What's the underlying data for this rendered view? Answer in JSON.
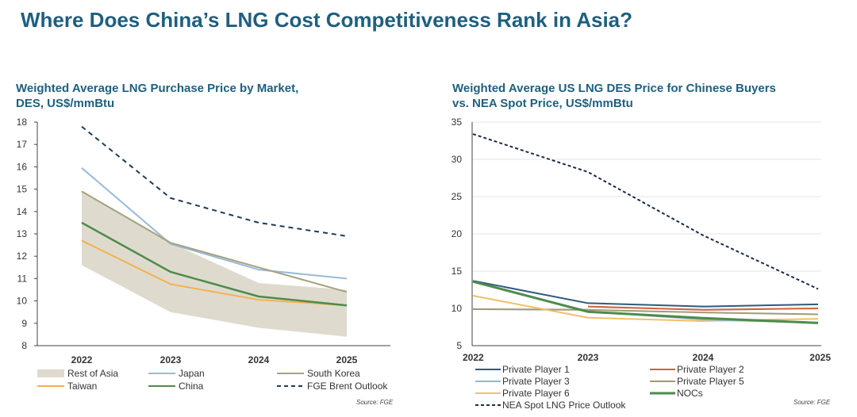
{
  "page": {
    "title": "Where Does China’s LNG Cost Competitiveness Rank in Asia?"
  },
  "colors": {
    "title": "#1f5f7f",
    "rest_of_asia": "#dedbce",
    "japan": "#9bbad7",
    "south_korea": "#a5a280",
    "taiwan": "#f3b152",
    "china": "#4d8c48",
    "brent": "#1f3c57",
    "pp1": "#2e5c7a",
    "pp2": "#d4603a",
    "pp3": "#92b9cf",
    "pp5": "#a09a7a",
    "pp6": "#f1bf6a",
    "nocs": "#4e8b4a",
    "nea": "#1b2c47"
  },
  "chart_data": [
    {
      "type": "line",
      "title": "Weighted Average LNG Purchase Price by Market, DES, US$/mmBtu",
      "categories": [
        "2022",
        "2023",
        "2024",
        "2025"
      ],
      "ylim": [
        8,
        18
      ],
      "yticks": [
        "8",
        "9",
        "10",
        "11",
        "12",
        "13",
        "14",
        "15",
        "16",
        "17",
        "18"
      ],
      "band": {
        "name": "Rest of Asia",
        "low": [
          11.6,
          9.5,
          8.8,
          8.4
        ],
        "high": [
          14.9,
          12.6,
          10.8,
          10.5
        ]
      },
      "series": [
        {
          "name": "Japan",
          "values": [
            15.95,
            12.55,
            11.4,
            11.0
          ]
        },
        {
          "name": "South Korea",
          "values": [
            14.9,
            12.6,
            11.5,
            10.4
          ]
        },
        {
          "name": "Taiwan",
          "values": [
            12.7,
            10.75,
            10.05,
            9.8
          ]
        },
        {
          "name": "China",
          "values": [
            13.5,
            11.3,
            10.2,
            9.8
          ]
        },
        {
          "name": "FGE Brent Outlook",
          "values": [
            17.8,
            14.6,
            13.5,
            12.9
          ],
          "dashed": true
        }
      ],
      "legend": [
        "Rest of Asia",
        "Japan",
        "South Korea",
        "Taiwan",
        "China",
        "FGE Brent Outlook"
      ],
      "source": "Source: FGE"
    },
    {
      "type": "line",
      "title": "Weighted Average US LNG DES Price for Chinese Buyers vs. NEA Spot Price, US$/mmBtu",
      "categories": [
        "2022",
        "2023",
        "2024",
        "2025"
      ],
      "ylim": [
        5,
        35
      ],
      "yticks": [
        "5",
        "10",
        "15",
        "20",
        "25",
        "30",
        "35"
      ],
      "series": [
        {
          "name": "Private Player 1",
          "values": [
            13.7,
            10.7,
            10.25,
            10.55
          ]
        },
        {
          "name": "Private Player 2",
          "values": [
            null,
            10.25,
            9.8,
            10.0
          ]
        },
        {
          "name": "Private Player 3",
          "values": [
            13.6,
            9.6,
            8.5,
            8.05
          ]
        },
        {
          "name": "Private Player 5",
          "values": [
            9.9,
            9.8,
            9.45,
            9.2
          ]
        },
        {
          "name": "Private Player 6",
          "values": [
            11.7,
            8.75,
            8.3,
            8.6
          ]
        },
        {
          "name": "NOCs",
          "values": [
            13.6,
            9.55,
            8.7,
            8.05
          ]
        },
        {
          "name": "NEA Spot LNG Price Outlook",
          "values": [
            33.4,
            28.3,
            19.8,
            12.6
          ],
          "dashed": true
        }
      ],
      "legend": [
        "Private Player 1",
        "Private Player 2",
        "Private Player 3",
        "Private Player 5",
        "Private Player 6",
        "NOCs",
        "NEA Spot LNG Price Outlook"
      ],
      "source": "Source: FGE"
    }
  ]
}
